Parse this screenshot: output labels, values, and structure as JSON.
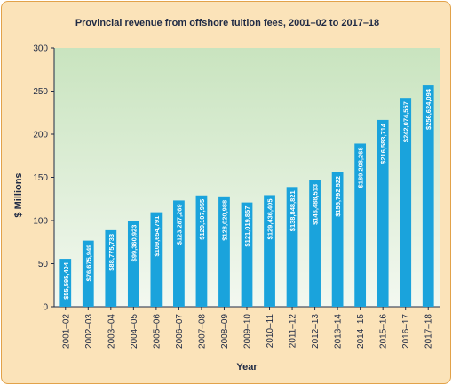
{
  "chart_data": {
    "type": "bar",
    "title": "Provincial revenue from offshore tuition fees, 2001–02 to 2017–18",
    "xlabel": "Year",
    "ylabel": "$ Millions",
    "ylim": [
      0,
      300
    ],
    "yticks": [
      0,
      50,
      100,
      150,
      200,
      250,
      300
    ],
    "grid": false,
    "legend": "none",
    "bar_color": "#1aa3dc",
    "plot_gradient": [
      "#c9e4bf",
      "#f3f8f0"
    ],
    "panel_color": "#fbe3b9",
    "categories": [
      "2001–02",
      "2002–03",
      "2003–04",
      "2004–05",
      "2005–06",
      "2006–07",
      "2007–08",
      "2008–09",
      "2009–10",
      "2010–11",
      "2011–12",
      "2012–13",
      "2013–14",
      "2014–15",
      "2015–16",
      "2016–17",
      "2017–18"
    ],
    "values": [
      55.595404,
      76.675949,
      88.775733,
      99.360923,
      109.654791,
      123.287269,
      129.107955,
      128.020988,
      121.019857,
      129.436405,
      138.848821,
      146.488513,
      155.792522,
      189.208268,
      216.583714,
      242.074557,
      256.624094
    ],
    "data_labels": [
      "$55,595,404",
      "$76,675,949",
      "$88,775,733",
      "$99,360,923",
      "$109,654,791",
      "$123,287,269",
      "$129,107,955",
      "$128,020,988",
      "$121,019,857",
      "$129,436,405",
      "$138,848,821",
      "$146,488,513",
      "$155,792,522",
      "$189,208,268",
      "$216,583,714",
      "$242,074,557",
      "$256,624,094"
    ]
  }
}
